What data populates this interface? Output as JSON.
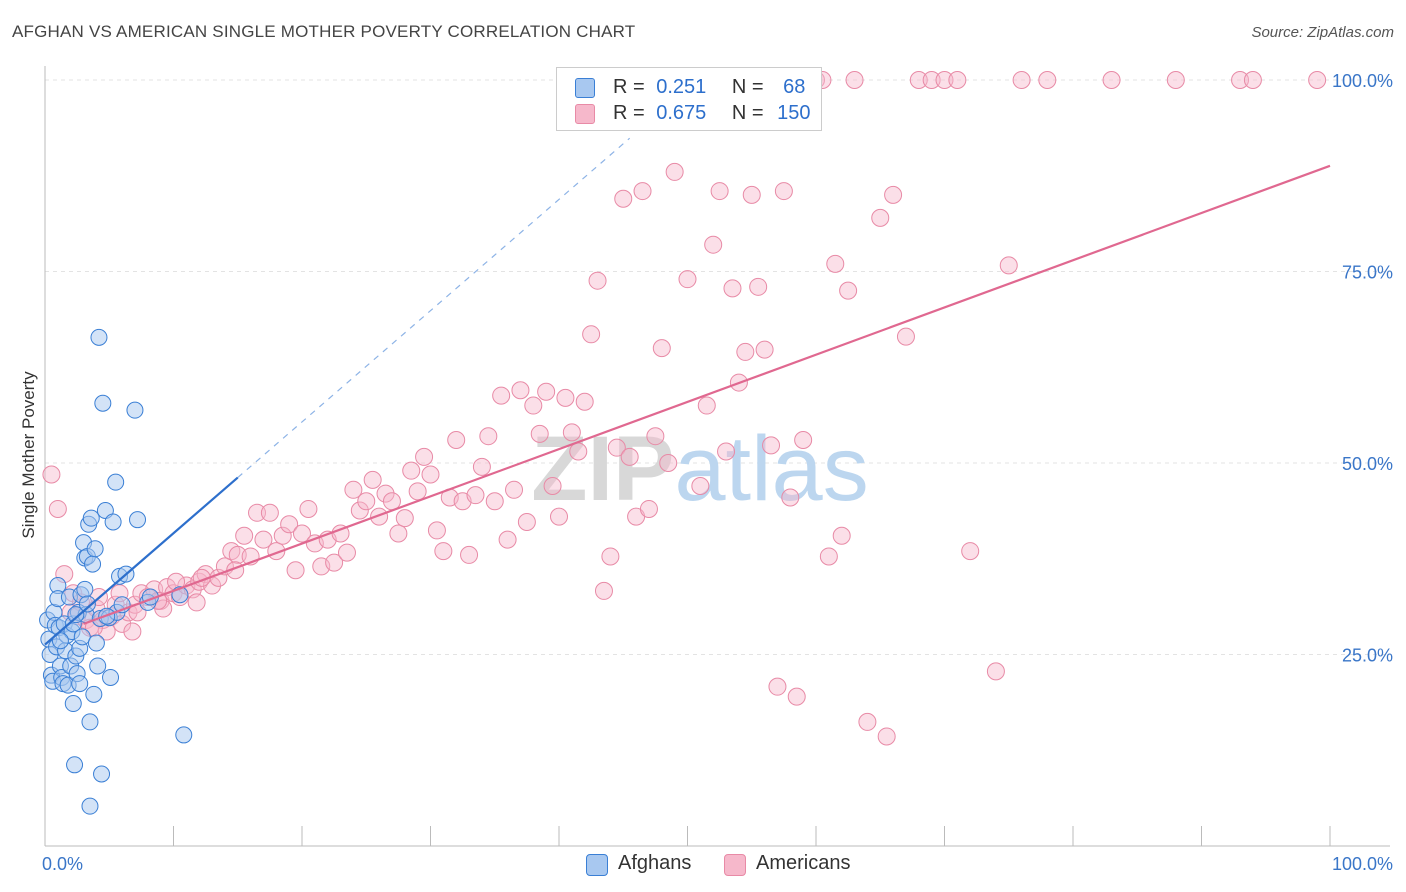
{
  "header": {
    "title": "AFGHAN VS AMERICAN SINGLE MOTHER POVERTY CORRELATION CHART",
    "source": "Source: ZipAtlas.com"
  },
  "watermark": {
    "zip": "ZIP",
    "atlas": "atlas"
  },
  "legend_top": {
    "rows": [
      {
        "r_label": "R =",
        "r_value": "0.251",
        "n_label": "N =",
        "n_value": "68",
        "color": "#a8c8f0"
      },
      {
        "r_label": "R =",
        "r_value": "0.675",
        "n_label": "N =",
        "n_value": "150",
        "color": "#f6b8cb"
      }
    ]
  },
  "legend_bottom": {
    "items": [
      {
        "label": "Afghans",
        "color": "#a8c8f0"
      },
      {
        "label": "Americans",
        "color": "#f6b8cb"
      }
    ]
  },
  "chart_data": {
    "type": "scatter",
    "title": "AFGHAN VS AMERICAN SINGLE MOTHER POVERTY CORRELATION CHART",
    "xlabel": "",
    "ylabel": "Single Mother Poverty",
    "xlim": [
      0,
      100
    ],
    "ylim": [
      0,
      100
    ],
    "x_tick_labels": [
      "0.0%",
      "100.0%"
    ],
    "y_tick_labels": [
      "25.0%",
      "50.0%",
      "75.0%",
      "100.0%"
    ],
    "y_ticks": [
      25,
      50,
      75,
      100
    ],
    "grid": true,
    "legend_position": "top-center",
    "colors": {
      "afghans_fill": "#a8c8f0",
      "afghans_stroke": "#3a7fd5",
      "afghans_line": "#2d6fcc",
      "americans_fill": "#f6b8cb",
      "americans_stroke": "#e88aa6",
      "americans_line": "#e06890",
      "tick_label": "#3a76c8"
    },
    "series": [
      {
        "name": "Afghans",
        "r": 0.251,
        "n": 68,
        "trend": {
          "x": [
            0,
            15
          ],
          "y": [
            26.3,
            48.1
          ]
        },
        "trend_dashed": {
          "x": [
            15,
            45.5
          ],
          "y": [
            48.1,
            92.4
          ]
        },
        "points": [
          [
            0.2,
            29.5
          ],
          [
            0.3,
            27.0
          ],
          [
            0.4,
            25.0
          ],
          [
            0.5,
            22.3
          ],
          [
            0.6,
            21.5
          ],
          [
            0.7,
            30.5
          ],
          [
            0.8,
            28.8
          ],
          [
            0.9,
            26.0
          ],
          [
            1.0,
            34.0
          ],
          [
            1.0,
            32.3
          ],
          [
            1.1,
            28.5
          ],
          [
            1.2,
            23.5
          ],
          [
            1.3,
            22.0
          ],
          [
            1.4,
            21.2
          ],
          [
            1.5,
            29.0
          ],
          [
            1.6,
            25.5
          ],
          [
            1.7,
            27.5
          ],
          [
            1.8,
            21.0
          ],
          [
            1.9,
            32.5
          ],
          [
            2.0,
            23.5
          ],
          [
            2.1,
            28.0
          ],
          [
            2.2,
            29.0
          ],
          [
            2.2,
            18.6
          ],
          [
            2.3,
            10.6
          ],
          [
            2.4,
            24.8
          ],
          [
            2.5,
            22.5
          ],
          [
            2.6,
            30.5
          ],
          [
            2.7,
            25.8
          ],
          [
            2.8,
            32.8
          ],
          [
            2.9,
            27.3
          ],
          [
            3.0,
            39.6
          ],
          [
            3.1,
            33.5
          ],
          [
            3.1,
            37.6
          ],
          [
            3.2,
            30.2
          ],
          [
            3.3,
            37.8
          ],
          [
            3.4,
            42.0
          ],
          [
            3.5,
            5.2
          ],
          [
            3.5,
            16.2
          ],
          [
            3.6,
            42.8
          ],
          [
            3.7,
            36.8
          ],
          [
            3.8,
            19.8
          ],
          [
            3.9,
            38.8
          ],
          [
            4.0,
            26.5
          ],
          [
            4.1,
            23.5
          ],
          [
            4.2,
            66.4
          ],
          [
            4.3,
            29.7
          ],
          [
            4.4,
            9.4
          ],
          [
            4.5,
            57.8
          ],
          [
            4.7,
            43.8
          ],
          [
            5.0,
            29.8
          ],
          [
            5.1,
            22.0
          ],
          [
            5.3,
            42.3
          ],
          [
            5.5,
            47.5
          ],
          [
            5.6,
            30.5
          ],
          [
            5.8,
            35.2
          ],
          [
            6.0,
            31.5
          ],
          [
            6.3,
            35.5
          ],
          [
            7.0,
            56.9
          ],
          [
            7.2,
            42.6
          ],
          [
            8.0,
            31.8
          ],
          [
            8.2,
            32.5
          ],
          [
            10.5,
            32.8
          ],
          [
            10.8,
            14.5
          ],
          [
            2.4,
            30.2
          ],
          [
            2.7,
            21.2
          ],
          [
            1.2,
            26.8
          ],
          [
            3.3,
            31.6
          ],
          [
            4.8,
            30.0
          ]
        ]
      },
      {
        "name": "Americans",
        "r": 0.675,
        "n": 150,
        "trend": {
          "x": [
            3,
            100
          ],
          "y": [
            29.0,
            88.8
          ]
        },
        "points": [
          [
            0.5,
            48.5
          ],
          [
            1.0,
            44.0
          ],
          [
            1.5,
            35.5
          ],
          [
            2.0,
            30.5
          ],
          [
            2.2,
            33.0
          ],
          [
            2.5,
            30.0
          ],
          [
            2.8,
            31.8
          ],
          [
            3.2,
            29.5
          ],
          [
            3.5,
            28.5
          ],
          [
            4.0,
            31.0
          ],
          [
            4.5,
            29.5
          ],
          [
            4.8,
            28.0
          ],
          [
            5.2,
            30.0
          ],
          [
            5.5,
            31.5
          ],
          [
            6.0,
            29.0
          ],
          [
            6.5,
            30.5
          ],
          [
            7.0,
            31.5
          ],
          [
            7.5,
            33.0
          ],
          [
            8.0,
            32.5
          ],
          [
            8.5,
            33.5
          ],
          [
            9.0,
            32.0
          ],
          [
            9.5,
            33.8
          ],
          [
            10.0,
            33.0
          ],
          [
            10.5,
            32.5
          ],
          [
            11.0,
            34.0
          ],
          [
            11.5,
            33.5
          ],
          [
            12.0,
            34.5
          ],
          [
            12.5,
            35.5
          ],
          [
            13.0,
            34.0
          ],
          [
            13.5,
            35.0
          ],
          [
            14.0,
            36.5
          ],
          [
            14.5,
            38.5
          ],
          [
            15.0,
            38.0
          ],
          [
            15.5,
            40.5
          ],
          [
            16.0,
            37.8
          ],
          [
            16.5,
            43.5
          ],
          [
            17.0,
            40.0
          ],
          [
            17.5,
            43.5
          ],
          [
            18.0,
            38.5
          ],
          [
            18.5,
            40.5
          ],
          [
            19.0,
            42.0
          ],
          [
            19.5,
            36.0
          ],
          [
            20.0,
            40.8
          ],
          [
            20.5,
            44.0
          ],
          [
            21.0,
            39.5
          ],
          [
            21.5,
            36.5
          ],
          [
            22.0,
            40.0
          ],
          [
            22.5,
            37.0
          ],
          [
            23.0,
            40.8
          ],
          [
            23.5,
            38.3
          ],
          [
            24.0,
            46.5
          ],
          [
            24.5,
            43.8
          ],
          [
            25.0,
            45.0
          ],
          [
            25.5,
            47.8
          ],
          [
            26.0,
            43.0
          ],
          [
            26.5,
            46.0
          ],
          [
            27.0,
            45.0
          ],
          [
            27.5,
            40.8
          ],
          [
            28.0,
            42.8
          ],
          [
            28.5,
            49.0
          ],
          [
            29.0,
            46.3
          ],
          [
            29.5,
            50.8
          ],
          [
            30.0,
            48.5
          ],
          [
            30.5,
            41.2
          ],
          [
            31.0,
            38.5
          ],
          [
            31.5,
            45.5
          ],
          [
            32.0,
            53.0
          ],
          [
            32.5,
            45.0
          ],
          [
            33.0,
            38.0
          ],
          [
            33.5,
            45.8
          ],
          [
            34.0,
            49.5
          ],
          [
            34.5,
            53.5
          ],
          [
            35.0,
            45.0
          ],
          [
            35.5,
            58.8
          ],
          [
            36.0,
            40.0
          ],
          [
            36.5,
            46.5
          ],
          [
            37.0,
            59.5
          ],
          [
            37.5,
            42.3
          ],
          [
            38.0,
            57.5
          ],
          [
            38.5,
            53.8
          ],
          [
            39.0,
            59.3
          ],
          [
            39.5,
            47.0
          ],
          [
            40.0,
            43.0
          ],
          [
            40.5,
            58.5
          ],
          [
            41.0,
            54.0
          ],
          [
            41.5,
            51.5
          ],
          [
            42.0,
            58.0
          ],
          [
            42.5,
            66.8
          ],
          [
            43.0,
            73.8
          ],
          [
            43.5,
            33.3
          ],
          [
            44.0,
            37.8
          ],
          [
            44.5,
            52.0
          ],
          [
            45.0,
            84.5
          ],
          [
            45.5,
            50.8
          ],
          [
            46.0,
            43.0
          ],
          [
            46.5,
            85.5
          ],
          [
            47.0,
            44.0
          ],
          [
            47.5,
            53.5
          ],
          [
            48.0,
            65.0
          ],
          [
            48.5,
            50.0
          ],
          [
            49.0,
            88.0
          ],
          [
            49.5,
            100
          ],
          [
            50.0,
            74.0
          ],
          [
            50.5,
            100
          ],
          [
            51.0,
            47.0
          ],
          [
            51.5,
            57.5
          ],
          [
            52.0,
            78.5
          ],
          [
            52.5,
            85.5
          ],
          [
            53.0,
            51.5
          ],
          [
            53.5,
            72.8
          ],
          [
            54.0,
            60.5
          ],
          [
            54.5,
            64.5
          ],
          [
            55.0,
            85.0
          ],
          [
            55.5,
            73.0
          ],
          [
            56.0,
            64.8
          ],
          [
            56.5,
            52.3
          ],
          [
            57.0,
            20.8
          ],
          [
            57.5,
            85.5
          ],
          [
            58.0,
            45.5
          ],
          [
            58.5,
            19.5
          ],
          [
            59.0,
            53.0
          ],
          [
            60.0,
            100
          ],
          [
            60.5,
            100
          ],
          [
            61.0,
            37.8
          ],
          [
            61.5,
            76.0
          ],
          [
            62.0,
            40.5
          ],
          [
            62.5,
            72.5
          ],
          [
            63.0,
            100
          ],
          [
            64.0,
            16.2
          ],
          [
            65.0,
            82.0
          ],
          [
            65.5,
            14.3
          ],
          [
            66.0,
            85.0
          ],
          [
            67.0,
            66.5
          ],
          [
            68.0,
            100
          ],
          [
            69.0,
            100
          ],
          [
            70.0,
            100
          ],
          [
            71.0,
            100
          ],
          [
            72.0,
            38.5
          ],
          [
            74.0,
            22.8
          ],
          [
            75.0,
            75.8
          ],
          [
            76.0,
            100
          ],
          [
            78.0,
            100
          ],
          [
            83.0,
            100
          ],
          [
            88.0,
            100
          ],
          [
            93.0,
            100
          ],
          [
            94.0,
            100
          ],
          [
            99.0,
            100
          ],
          [
            3.8,
            28.5
          ],
          [
            6.8,
            28.0
          ],
          [
            9.2,
            31.0
          ],
          [
            11.8,
            31.8
          ],
          [
            14.8,
            36.0
          ],
          [
            12.2,
            35.0
          ],
          [
            8.8,
            32.0
          ],
          [
            5.8,
            33.0
          ],
          [
            7.2,
            30.5
          ],
          [
            4.2,
            32.5
          ],
          [
            10.2,
            34.5
          ]
        ]
      }
    ]
  }
}
